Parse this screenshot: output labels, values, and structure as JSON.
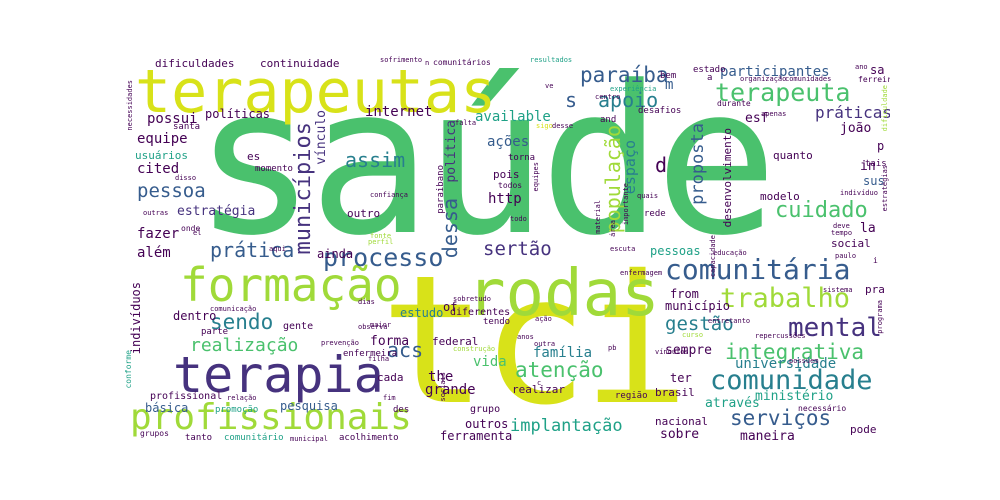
{
  "colors": {
    "yellow": "#d8e219",
    "lightgreen": "#a0da39",
    "green": "#4ac16d",
    "teal": "#1fa187",
    "blue": "#365c8d",
    "indigo": "#46327e",
    "purple": "#440154",
    "cyan": "#277f8e"
  },
  "words": [
    "saúde",
    "tci",
    "rodas",
    "terapeutas",
    "formação",
    "terapia",
    "profissionais",
    "comunitária",
    "comunidade",
    "processo",
    "mental",
    "terapeuta",
    "trabalho",
    "cuidado",
    "integrativa",
    "atenção",
    "serviços",
    "implantação",
    "apoio",
    "sendo",
    "paraíba",
    "municípios",
    "assim",
    "pessoa",
    "prática",
    "sertão",
    "realização",
    "acs",
    "gestão",
    "população",
    "dessa",
    "estratégia",
    "práticas",
    "proposta",
    "espaço",
    "internet",
    "vínculo",
    "política",
    "possui",
    "equipe",
    "cited",
    "fazer",
    "além",
    "família",
    "vida",
    "grande",
    "the",
    "ações",
    "http",
    "available",
    "universidade",
    "sempre",
    "através",
    "ministério",
    "maneira",
    "sobre",
    "nacional",
    "ferramenta",
    "outros",
    "pesquisa",
    "básica",
    "profissional",
    "dentro",
    "indivíduos",
    "forma",
    "estudo",
    "ainda",
    "pessoas",
    "município",
    "from",
    "of",
    "ter",
    "brasil",
    "região",
    "desenvolvimento",
    "modelo",
    "quanto",
    "joão",
    "esf",
    "sus",
    "in",
    "la",
    "social",
    "pra",
    "pode",
    "participantes",
    "sa",
    "dificuldades",
    "continuidade",
    "comunitários",
    "políticas",
    "usuários",
    "momento",
    "es",
    "outro",
    "rede",
    "onde",
    "paraibano",
    "pois",
    "todos",
    "torna",
    "desafios",
    "durante",
    "apenas",
    "tais",
    "santa",
    "d",
    "s",
    "m",
    "p",
    "cada",
    "gente",
    "parte",
    "prevenção",
    "enfermeira",
    "grupo",
    "tendo",
    "diferentes",
    "federal",
    "realizar",
    "fim",
    "grupos",
    "tanto",
    "comunitário",
    "municipal",
    "acolhimento",
    "des",
    "promoção",
    "conforme",
    "necessidades",
    "sofrimento",
    "resultados",
    "estado",
    "bem",
    "experiência",
    "centro",
    "organização",
    "comunidades",
    "ferreira",
    "ano",
    "deve",
    "tempo",
    "indivíduo",
    "estratégias",
    "dificuldade",
    "confiança",
    "outras",
    "disso",
    "falta",
    "sigo",
    "desse",
    "and",
    "equipes",
    "importante",
    "quais",
    "material",
    "área",
    "escuta",
    "educação",
    "capacidade",
    "perfil",
    "sobretudo",
    "dias",
    "maior",
    "enfermagem",
    "sistema",
    "paulo",
    "aqui",
    "el",
    "todo",
    "comunicação",
    "relação",
    "observa",
    "construção",
    "ação",
    "anos",
    "outra",
    "vínculos",
    "pb",
    "curso",
    "repercussões",
    "possuem",
    "programa",
    "necessário",
    "entretanto",
    "filha",
    "sociais",
    "ve",
    "fonte",
    "i",
    "c",
    "n",
    "a"
  ]
}
